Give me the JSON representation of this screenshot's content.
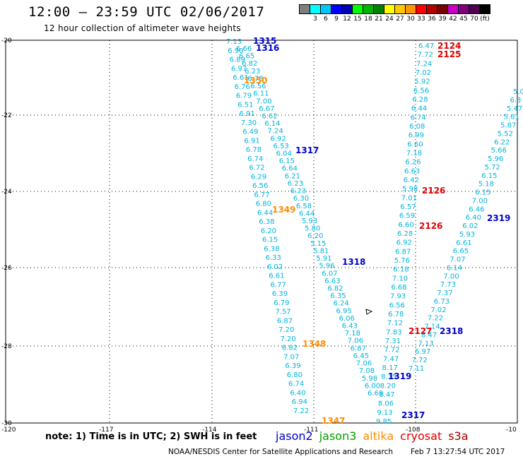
{
  "title": "12:00 – 23:59 UTC 02/06/2017",
  "subtitle": "12 hour collection of altimeter wave heights",
  "colorbar": {
    "colors": [
      "#808080",
      "#00ffff",
      "#00c8ff",
      "#0000ff",
      "#0000b4",
      "#00ff00",
      "#00b400",
      "#008200",
      "#ffff00",
      "#ffc800",
      "#ff9600",
      "#ff0000",
      "#b40000",
      "#780000",
      "#c800c8",
      "#800080",
      "#500050",
      "#000000"
    ],
    "labels": [
      "3",
      "6",
      "9",
      "12",
      "15",
      "18",
      "21",
      "24",
      "27",
      "30",
      "33",
      "36",
      "39",
      "42",
      "45",
      "70",
      "(ft)"
    ]
  },
  "axes": {
    "lat_labels": [
      "-20",
      "-22",
      "-24",
      "-26",
      "-28",
      "-30"
    ],
    "lon_labels": [
      "-120",
      "-117",
      "-114",
      "-111",
      "-108",
      "-10"
    ]
  },
  "tracks": {
    "jason2_a": [
      "7.13",
      "6.90",
      "6.89",
      "6.97",
      "6.61",
      "6.76",
      "6.79",
      "6.51",
      "6.91",
      "7.30",
      "6.49",
      "6.91",
      "6.78",
      "6.74",
      "6.72",
      "6.29",
      "6.56",
      "6.77",
      "6.80",
      "6.44",
      "6.38",
      "6.20",
      "6.15",
      "6.38",
      "6.33",
      "6.02",
      "6.61",
      "6.77",
      "6.39",
      "6.79",
      "7.57",
      "6.87",
      "7.20",
      "7.20",
      "6.82",
      "7.07",
      "6.39",
      "6.80",
      "6.74",
      "6.40",
      "6.94",
      "7.22"
    ],
    "jason2_b": [
      "6.66",
      "6.65",
      "6.82",
      "6.23",
      "6.78",
      "6.56",
      "6.11",
      "7.00",
      "6.67",
      "6.62",
      "6.14",
      "7.24",
      "6.92",
      "6.53",
      "6.04",
      "6.15",
      "6.64",
      "6.21",
      "6.23",
      "6.23",
      "6.30",
      "6.58",
      "6.44",
      "5.93",
      "5.80",
      "6.20",
      "5.15",
      "5.81",
      "5.91",
      "5.96",
      "6.07",
      "6.63",
      "6.82",
      "6.35",
      "6.24",
      "6.95",
      "6.06",
      "6.43",
      "7.18",
      "7.06",
      "6.87",
      "6.45",
      "7.06",
      "7.08",
      "5.98",
      "6.00",
      "6.69"
    ],
    "jason2_c": [
      "6.47",
      "7.72",
      "7.24",
      "7.02",
      "5.92",
      "6.56",
      "6.28",
      "6.44",
      "6.74",
      "6.08",
      "6.99",
      "6.60",
      "7.18",
      "6.26",
      "6.63",
      "6.42",
      "5.98",
      "7.01",
      "6.57",
      "6.59",
      "6.60",
      "6.28",
      "6.92",
      "6.87",
      "5.76",
      "6.18",
      "7.10",
      "6.68",
      "7.93",
      "6.56",
      "6.78",
      "7.12",
      "7.83",
      "7.31",
      "7.72",
      "7.47",
      "8.17",
      "8.35",
      "8.20",
      "8.47",
      "8.06",
      "9.13",
      "9.85"
    ],
    "jason2_d": [
      "5.0",
      "6.3",
      "5.47",
      "5.61",
      "5.87",
      "5.52",
      "6.22",
      "5.66",
      "5.96",
      "5.72",
      "6.15",
      "5.18",
      "6.15",
      "7.00",
      "6.46",
      "6.40",
      "6.02",
      "5.93",
      "6.61",
      "6.65",
      "7.07",
      "6.14",
      "7.00",
      "7.73",
      "7.37",
      "6.73",
      "7.02",
      "7.22",
      "7.14",
      "8.47",
      "7.13",
      "6.97",
      "7.72",
      "7.11"
    ]
  },
  "pass_labels": [
    {
      "text": "1315",
      "sat": "jason2"
    },
    {
      "text": "1316",
      "sat": "jason2"
    },
    {
      "text": "1350",
      "sat": "altika"
    },
    {
      "text": "1317",
      "sat": "jason2"
    },
    {
      "text": "1349",
      "sat": "altika"
    },
    {
      "text": "1318",
      "sat": "jason2"
    },
    {
      "text": "1348",
      "sat": "altika"
    },
    {
      "text": "1347",
      "sat": "altika"
    },
    {
      "text": "1319",
      "sat": "jason2"
    },
    {
      "text": "2317",
      "sat": "jason2"
    },
    {
      "text": "2318",
      "sat": "jason2"
    },
    {
      "text": "2319",
      "sat": "jason2"
    },
    {
      "text": "2124",
      "sat": "cryosat"
    },
    {
      "text": "2125",
      "sat": "cryosat"
    },
    {
      "text": "2126",
      "sat": "cryosat"
    },
    {
      "text": "2126",
      "sat": "cryosat"
    },
    {
      "text": "2127",
      "sat": "cryosat"
    }
  ],
  "note": "note: 1) Time is in UTC; 2) SWH is in feet",
  "legend": [
    {
      "name": "jason2",
      "color": "#0000c8"
    },
    {
      "name": "jason3",
      "color": "#00a000"
    },
    {
      "name": "altika",
      "color": "#ff8c00"
    },
    {
      "name": "cryosat",
      "color": "#e00000"
    },
    {
      "name": "s3a",
      "color": "#a00000"
    }
  ],
  "credit": "NOAA/NESDIS Center for Satellite Applications and Research",
  "timestamp": "Feb  7 13:27:54 UTC 2017",
  "colors": {
    "track": "#00b4dc",
    "jason2": "#0000c8",
    "altika": "#ff8c00",
    "cryosat": "#e00000",
    "grid": "#000000"
  }
}
